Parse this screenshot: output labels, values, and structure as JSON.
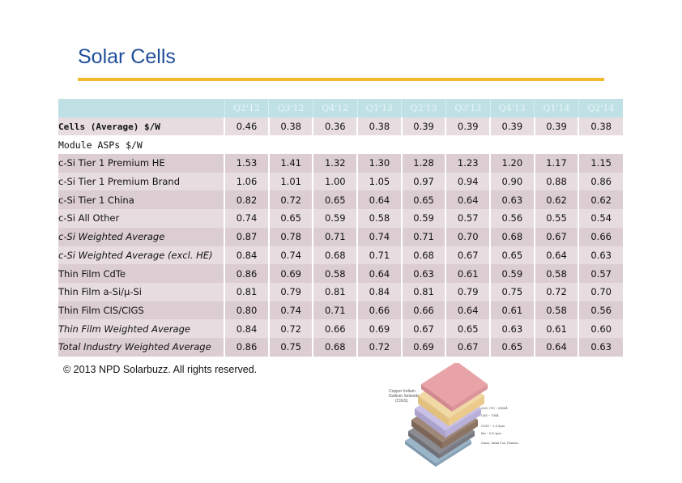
{
  "page": {
    "title": "Solar Cells",
    "copyright": "© 2013 NPD Solarbuzz. All rights reserved.",
    "accent_color": "#f2b92e",
    "title_color": "#1f4e9a"
  },
  "table": {
    "columns": [
      "Q2'12",
      "Q3'12",
      "Q4'12",
      "Q1'13",
      "Q2'13",
      "Q3'13",
      "Q4'13",
      "Q1'14",
      "Q2'14"
    ],
    "cells_row": {
      "label": "Cells (Average) $/W",
      "values": [
        "0.46",
        "0.38",
        "0.36",
        "0.38",
        "0.39",
        "0.39",
        "0.39",
        "0.39",
        "0.38"
      ]
    },
    "section_label": "Module ASPs $/W",
    "rows": [
      {
        "label": "c-Si Tier 1 Premium HE",
        "italic": false,
        "values": [
          "1.53",
          "1.41",
          "1.32",
          "1.30",
          "1.28",
          "1.23",
          "1.20",
          "1.17",
          "1.15"
        ]
      },
      {
        "label": "c-Si Tier 1 Premium Brand",
        "italic": false,
        "values": [
          "1.06",
          "1.01",
          "1.00",
          "1.05",
          "0.97",
          "0.94",
          "0.90",
          "0.88",
          "0.86"
        ]
      },
      {
        "label": "c-Si Tier 1 China",
        "italic": false,
        "values": [
          "0.82",
          "0.72",
          "0.65",
          "0.64",
          "0.65",
          "0.64",
          "0.63",
          "0.62",
          "0.62"
        ]
      },
      {
        "label": "c-Si All Other",
        "italic": false,
        "values": [
          "0.74",
          "0.65",
          "0.59",
          "0.58",
          "0.59",
          "0.57",
          "0.56",
          "0.55",
          "0.54"
        ]
      },
      {
        "label": "c-Si Weighted Average",
        "italic": true,
        "values": [
          "0.87",
          "0.78",
          "0.71",
          "0.74",
          "0.71",
          "0.70",
          "0.68",
          "0.67",
          "0.66"
        ]
      },
      {
        "label": "c-Si Weighted Average (excl. HE)",
        "italic": true,
        "values": [
          "0.84",
          "0.74",
          "0.68",
          "0.71",
          "0.68",
          "0.67",
          "0.65",
          "0.64",
          "0.63"
        ]
      },
      {
        "label": "Thin Film CdTe",
        "italic": false,
        "values": [
          "0.86",
          "0.69",
          "0.58",
          "0.64",
          "0.63",
          "0.61",
          "0.59",
          "0.58",
          "0.57"
        ]
      },
      {
        "label": "Thin Film a-Si/µ-Si",
        "italic": false,
        "values": [
          "0.81",
          "0.79",
          "0.81",
          "0.84",
          "0.81",
          "0.79",
          "0.75",
          "0.72",
          "0.70"
        ]
      },
      {
        "label": "Thin Film CIS/CIGS",
        "italic": false,
        "values": [
          "0.80",
          "0.74",
          "0.71",
          "0.66",
          "0.66",
          "0.64",
          "0.61",
          "0.58",
          "0.56"
        ]
      },
      {
        "label": "Thin Film Weighted Average",
        "italic": true,
        "values": [
          "0.84",
          "0.72",
          "0.66",
          "0.69",
          "0.67",
          "0.65",
          "0.63",
          "0.61",
          "0.60"
        ]
      },
      {
        "label": "Total Industry Weighted Average",
        "italic": true,
        "values": [
          "0.86",
          "0.75",
          "0.68",
          "0.72",
          "0.69",
          "0.67",
          "0.65",
          "0.64",
          "0.63"
        ]
      }
    ]
  },
  "diagram": {
    "heading": [
      "Copper Indium",
      "Gallium Selenide",
      "(CIGS)"
    ],
    "layers": [
      "ZnO, ITO ~ 2500Å",
      "CdS ~ 700Å",
      "CIGS ~ 1-2.5µm",
      "Mo ~ 0.5-1µm",
      "Glass, Metal Foil, Plastics"
    ]
  }
}
